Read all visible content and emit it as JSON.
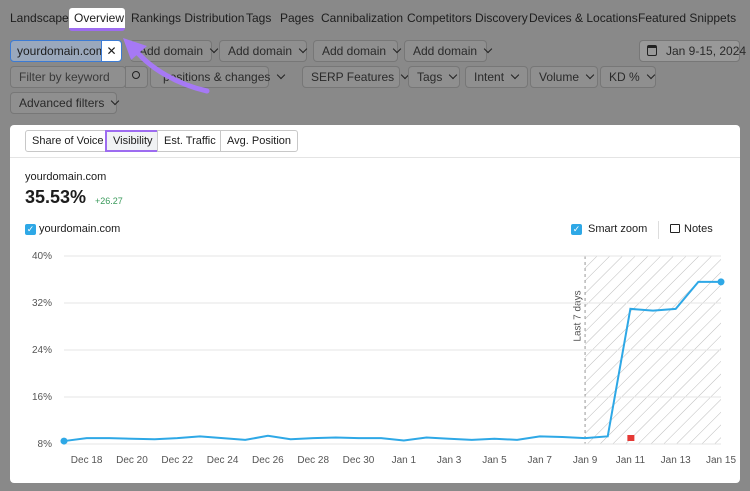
{
  "nav": {
    "tabs": [
      "Landscape",
      "Overview",
      "Rankings Distribution",
      "Tags",
      "Pages",
      "Cannibalization",
      "Competitors Discovery",
      "Devices & Locations",
      "Featured Snippets"
    ]
  },
  "filters": {
    "domain_chip": "yourdomain.com",
    "add_domain": [
      "Add domain",
      "Add domain",
      "Add domain",
      "Add domain"
    ],
    "date": "Jan 9-15, 2024",
    "keyword_placeholder": "Filter by keyword",
    "dropdowns": [
      "positions & changes",
      "SERP Features",
      "Tags",
      "Intent",
      "Volume",
      "KD %"
    ],
    "advanced": "Advanced filters"
  },
  "card": {
    "tabs": [
      "Share of Voice",
      "Visibility",
      "Est. Traffic",
      "Avg. Position"
    ],
    "domain": "yourdomain.com",
    "metric": "35.53%",
    "change": "+26.27",
    "smart_zoom": "Smart zoom",
    "notes": "Notes"
  },
  "chart_data": {
    "type": "line",
    "categories": [
      null,
      "Dec 18",
      null,
      "Dec 20",
      null,
      "Dec 22",
      null,
      "Dec 24",
      null,
      "Dec 26",
      null,
      "Dec 28",
      null,
      "Dec 30",
      null,
      "Jan 1",
      null,
      "Jan 3",
      null,
      "Jan 5",
      null,
      "Jan 7",
      null,
      "Jan 9",
      null,
      "Jan 11",
      null,
      "Jan 13",
      null,
      "Jan 15"
    ],
    "series": [
      {
        "name": "yourdomain.com",
        "color": "#2ea8e6",
        "values": [
          8.5,
          9.0,
          9.0,
          8.9,
          8.8,
          9.0,
          9.3,
          9.0,
          8.7,
          9.4,
          8.8,
          9.0,
          9.1,
          9.0,
          9.0,
          8.6,
          9.1,
          8.9,
          8.7,
          8.9,
          8.7,
          9.3,
          9.2,
          9.0,
          9.3,
          31.0,
          30.7,
          31.0,
          35.6,
          35.6
        ]
      }
    ],
    "ylim": [
      8,
      40
    ],
    "yticks": [
      {
        "value": 8,
        "label": "8%"
      },
      {
        "value": 16,
        "label": "16%"
      },
      {
        "value": 24,
        "label": "24%"
      },
      {
        "value": 32,
        "label": "32%"
      },
      {
        "value": 40,
        "label": "40%"
      }
    ],
    "grid": true,
    "annotation": "Last 7 days"
  }
}
